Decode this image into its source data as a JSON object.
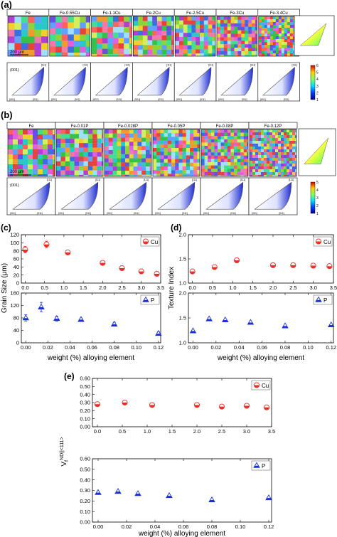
{
  "panel_a": {
    "label": "(a)",
    "samples": [
      "Fe",
      "Fe-0.55Cu",
      "Fe-1.1Cu",
      "Fe-2Cu",
      "Fe-2.5Cu",
      "Fe-3Cu",
      "Fe-3.4Cu"
    ],
    "scale_bar": "200 μm",
    "ipf_plane": "(001)",
    "ipf_poles": [
      "[001]",
      "[011]",
      "[111]"
    ],
    "legend_ticks": [
      "6",
      "5",
      "4",
      "3",
      "2",
      "1"
    ]
  },
  "panel_b": {
    "label": "(b)",
    "samples": [
      "Fe",
      "Fe-0.01P",
      "Fe-0.028P",
      "Fe-0.05P",
      "Fe-0.08P",
      "Fe-0.12P"
    ],
    "scale_bar": "200 μm",
    "ipf_plane": "(001)",
    "ipf_poles": [
      "[001]",
      "[011]",
      "[111]"
    ],
    "legend_ticks": [
      "5",
      "4",
      "3",
      "2",
      "1"
    ]
  },
  "chart_data": [
    {
      "id": "c",
      "label": "(c)",
      "type": "scatter",
      "ylabel": "Grain Size (μm)",
      "xlabel": "weight (%) alloying element",
      "subplots": [
        {
          "series_name": "Cu",
          "marker": "circle-half",
          "color": "#e8302a",
          "x": [
            0,
            0.55,
            1.1,
            2.0,
            2.5,
            3.0,
            3.4
          ],
          "y": [
            83,
            96,
            76,
            50,
            37,
            29,
            23
          ],
          "err": [
            8,
            8,
            5,
            5,
            4,
            3,
            3
          ],
          "xlim": [
            -0.1,
            3.5
          ],
          "ylim": [
            0,
            120
          ],
          "xticks": [
            "0.0",
            "0.5",
            "1.0",
            "1.5",
            "2.0",
            "2.5",
            "3.0",
            "3.5"
          ],
          "yticks": [
            "0",
            "20",
            "40",
            "60",
            "80",
            "100",
            "120"
          ]
        },
        {
          "series_name": "P",
          "marker": "triangle",
          "color": "#1a2fd6",
          "x": [
            0,
            0.014,
            0.028,
            0.05,
            0.08,
            0.12
          ],
          "y": [
            80,
            115,
            78,
            75,
            60,
            30
          ],
          "err": [
            10,
            15,
            8,
            5,
            6,
            6
          ],
          "xlim": [
            -0.004,
            0.122
          ],
          "ylim": [
            0,
            160
          ],
          "xticks": [
            "0.00",
            "0.02",
            "0.04",
            "0.06",
            "0.08",
            "0.10",
            "0.12"
          ],
          "yticks": [
            "0",
            "40",
            "80",
            "120",
            "160"
          ]
        }
      ]
    },
    {
      "id": "d",
      "label": "(d)",
      "type": "scatter",
      "ylabel": "Texture Index",
      "xlabel": "weight (%) alloying element",
      "subplots": [
        {
          "series_name": "Cu",
          "marker": "circle-half",
          "color": "#e8302a",
          "x": [
            0,
            0.55,
            1.1,
            2.0,
            2.5,
            3.0,
            3.4
          ],
          "y": [
            1.24,
            1.33,
            1.47,
            1.37,
            1.37,
            1.36,
            1.35
          ],
          "xlim": [
            -0.1,
            3.5
          ],
          "ylim": [
            1.0,
            2.0
          ],
          "xticks": [
            "0.0",
            "0.5",
            "1.0",
            "1.5",
            "2.0",
            "2.5",
            "3.0",
            "3.5"
          ],
          "yticks": [
            "1.0",
            "1.5",
            "2.0"
          ]
        },
        {
          "series_name": "P",
          "marker": "triangle",
          "color": "#1a2fd6",
          "x": [
            0,
            0.014,
            0.028,
            0.05,
            0.08,
            0.12
          ],
          "y": [
            1.24,
            1.48,
            1.46,
            1.41,
            1.34,
            1.36
          ],
          "xlim": [
            -0.004,
            0.122
          ],
          "ylim": [
            1.0,
            2.0
          ],
          "xticks": [
            "0.00",
            "0.02",
            "0.04",
            "0.06",
            "0.08",
            "0.10",
            "0.12"
          ],
          "yticks": [
            "1.0",
            "1.5",
            "2.0"
          ]
        }
      ]
    },
    {
      "id": "e",
      "label": "(e)",
      "type": "scatter",
      "ylabel_main": "V",
      "ylabel_sub": "f",
      "ylabel_sup": "ND||<111>",
      "xlabel": "weight (%) alloying element",
      "subplots": [
        {
          "series_name": "Cu",
          "marker": "circle-half",
          "color": "#e8302a",
          "x": [
            0,
            0.55,
            1.1,
            2.0,
            2.5,
            3.0,
            3.4
          ],
          "y": [
            0.28,
            0.3,
            0.27,
            0.27,
            0.25,
            0.26,
            0.24
          ],
          "xlim": [
            -0.1,
            3.5
          ],
          "ylim": [
            0,
            0.6
          ],
          "xticks": [
            "0.0",
            "0.5",
            "1.0",
            "1.5",
            "2.0",
            "2.5",
            "3.0",
            "3.5"
          ],
          "yticks": [
            "0.00",
            "0.10",
            "0.20",
            "0.30",
            "0.40",
            "0.50",
            "0.60"
          ]
        },
        {
          "series_name": "P",
          "marker": "triangle",
          "color": "#1a2fd6",
          "x": [
            0,
            0.014,
            0.028,
            0.05,
            0.08,
            0.12
          ],
          "y": [
            0.28,
            0.29,
            0.27,
            0.25,
            0.21,
            0.23
          ],
          "xlim": [
            -0.004,
            0.122
          ],
          "ylim": [
            0,
            0.6
          ],
          "xticks": [
            "0.00",
            "0.02",
            "0.04",
            "0.06",
            "0.08",
            "0.10",
            "0.12"
          ],
          "yticks": [
            "0.00",
            "0.10",
            "0.20",
            "0.30",
            "0.40",
            "0.50",
            "0.60"
          ]
        }
      ]
    }
  ]
}
